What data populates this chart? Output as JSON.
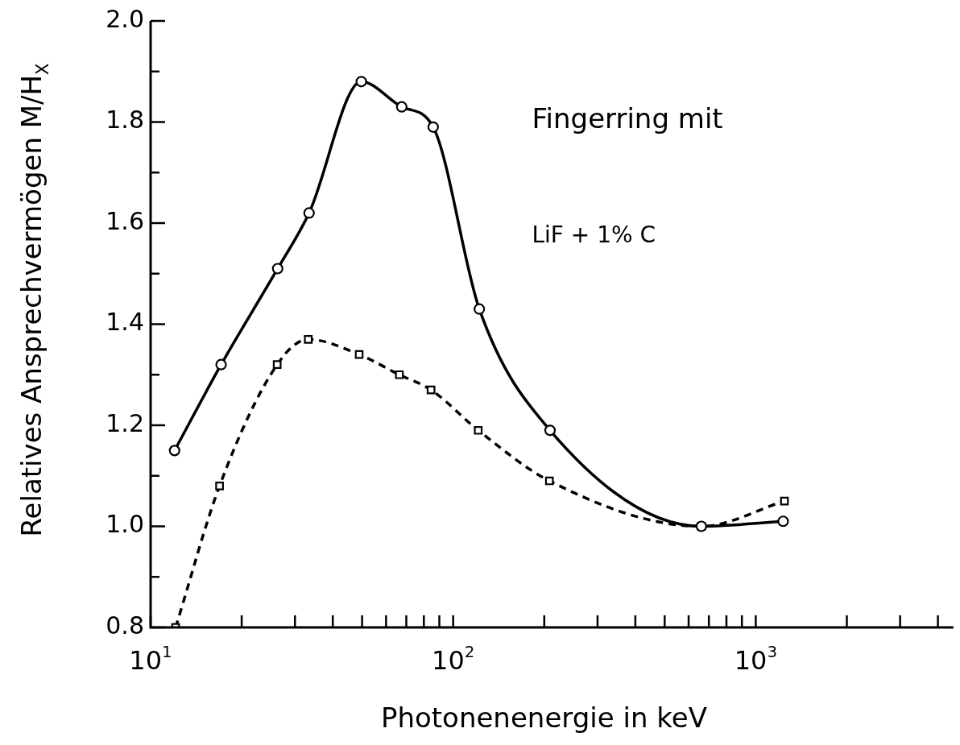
{
  "chart_data": {
    "type": "line",
    "xlabel": "Photonenenergie in keV",
    "ylabel": "Relatives Ansprechvermögen M/H$_{X}$",
    "log": "x",
    "xlim": [
      10,
      4500
    ],
    "xticks": [
      {
        "value": 10,
        "label": "10$^{1}$"
      },
      {
        "value": 20,
        "label": null
      },
      {
        "value": 30,
        "label": null
      },
      {
        "value": 40,
        "label": null
      },
      {
        "value": 50,
        "label": null
      },
      {
        "value": 60,
        "label": null
      },
      {
        "value": 70,
        "label": null
      },
      {
        "value": 80,
        "label": null
      },
      {
        "value": 90,
        "label": null
      },
      {
        "value": 100,
        "label": "10$^{2}$"
      },
      {
        "value": 200,
        "label": null
      },
      {
        "value": 300,
        "label": null
      },
      {
        "value": 400,
        "label": null
      },
      {
        "value": 500,
        "label": null
      },
      {
        "value": 600,
        "label": null
      },
      {
        "value": 700,
        "label": null
      },
      {
        "value": 800,
        "label": null
      },
      {
        "value": 900,
        "label": null
      },
      {
        "value": 1000,
        "label": "10$^{3}$"
      },
      {
        "value": 2000,
        "label": null
      },
      {
        "value": 3000,
        "label": null
      },
      {
        "value": 4000,
        "label": null
      }
    ],
    "ylim": [
      0.8,
      2.0
    ],
    "yticks": [
      0.8,
      {
        "value": 0.9,
        "label": null
      },
      {
        "value": 1.0,
        "label": "1.0"
      },
      {
        "value": 1.1,
        "label": null
      },
      1.2,
      {
        "value": 1.3,
        "label": null
      },
      1.4,
      {
        "value": 1.5,
        "label": null
      },
      1.6,
      {
        "value": 1.7,
        "label": null
      },
      1.8,
      {
        "value": 1.9,
        "label": null
      },
      {
        "value": 2.0,
        "label": "2.0"
      }
    ],
    "annotations": [
      "Fingerring mit"
    ],
    "series": [
      {
        "name": "LiF + 1% C",
        "color": "#000000",
        "marker": "circle",
        "line_style": "solid",
        "x": [
          12.0,
          17.1,
          26.3,
          33.4,
          49.7,
          67.6,
          85.9,
          122,
          209,
          661,
          1232
        ],
        "values": [
          1.15,
          1.32,
          1.51,
          1.62,
          1.88,
          1.83,
          1.79,
          1.43,
          1.19,
          1.0,
          1.01
        ]
      },
      {
        "color": "#000000",
        "marker": "square",
        "line_style": "dashed",
        "x": [
          12.1,
          16.9,
          26.2,
          33.2,
          48.9,
          66.4,
          84.5,
          121,
          208,
          661,
          1244
        ],
        "values": [
          0.8,
          1.08,
          1.32,
          1.37,
          1.34,
          1.3,
          1.27,
          1.19,
          1.09,
          1.0,
          1.05
        ]
      }
    ]
  }
}
